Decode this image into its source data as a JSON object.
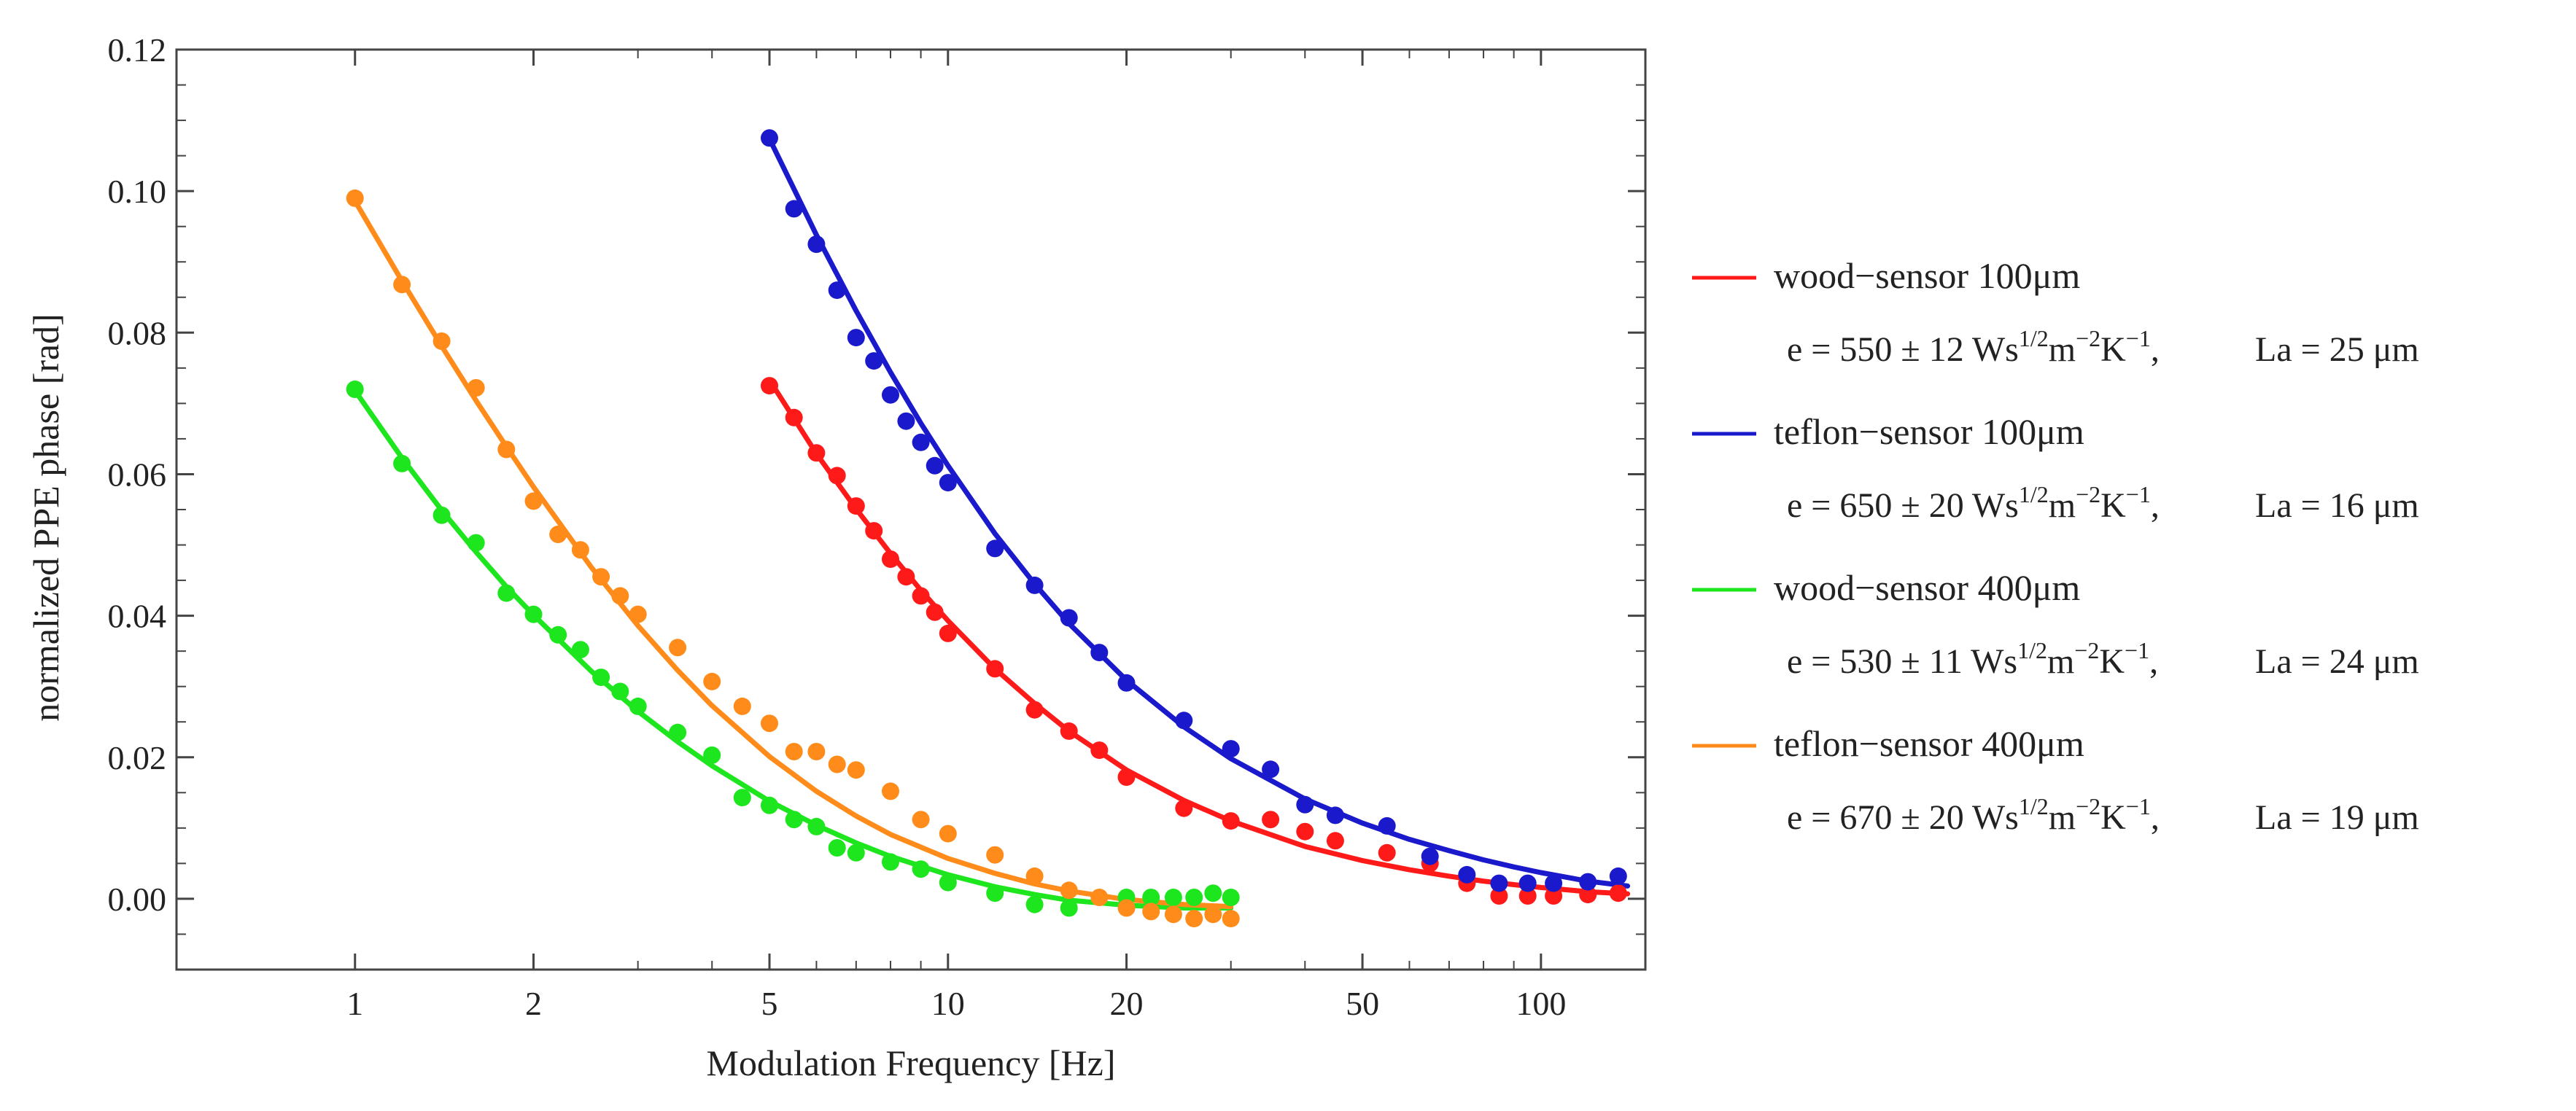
{
  "chart_data": {
    "type": "scatter",
    "x_scale": "log",
    "xlabel": "Modulation Frequency [Hz]",
    "ylabel": "normalized PPE phase  [rad]",
    "xlim": [
      0.5,
      150
    ],
    "ylim": [
      -0.01,
      0.12
    ],
    "x_ticks": [
      {
        "value": 1,
        "label": "1"
      },
      {
        "value": 2,
        "label": "2"
      },
      {
        "value": 5,
        "label": "5"
      },
      {
        "value": 10,
        "label": "10"
      },
      {
        "value": 20,
        "label": "20"
      },
      {
        "value": 50,
        "label": "50"
      },
      {
        "value": 100,
        "label": "100"
      }
    ],
    "x_minor_ticks": [
      3,
      4,
      6,
      7,
      8,
      9,
      30,
      40,
      60,
      70,
      80,
      90
    ],
    "y_ticks": [
      {
        "value": 0.0,
        "label": "0.00"
      },
      {
        "value": 0.02,
        "label": "0.02"
      },
      {
        "value": 0.04,
        "label": "0.04"
      },
      {
        "value": 0.06,
        "label": "0.06"
      },
      {
        "value": 0.08,
        "label": "0.08"
      },
      {
        "value": 0.1,
        "label": "0.10"
      },
      {
        "value": 0.12,
        "label": "0.12"
      }
    ],
    "y_minor_ticks": [
      -0.005,
      0.005,
      0.01,
      0.015,
      0.025,
      0.03,
      0.035,
      0.045,
      0.05,
      0.055,
      0.065,
      0.07,
      0.075,
      0.085,
      0.09,
      0.095,
      0.105,
      0.11,
      0.115
    ],
    "legend_position": "right",
    "series": [
      {
        "name": "wood−sensor 100μm",
        "param_e": "e = 550 ± 12 Ws",
        "param_la": "La = 25 μm",
        "color": "#ff1a1a",
        "points": [
          [
            5,
            0.0725
          ],
          [
            5.5,
            0.068
          ],
          [
            6,
            0.063
          ],
          [
            6.5,
            0.0598
          ],
          [
            7,
            0.0555
          ],
          [
            7.5,
            0.052
          ],
          [
            8,
            0.048
          ],
          [
            8.5,
            0.0455
          ],
          [
            9,
            0.0428
          ],
          [
            9.5,
            0.0405
          ],
          [
            10,
            0.0375
          ],
          [
            12,
            0.0325
          ],
          [
            14,
            0.0267
          ],
          [
            16,
            0.0237
          ],
          [
            18,
            0.021
          ],
          [
            20,
            0.0172
          ],
          [
            25,
            0.0128
          ],
          [
            30,
            0.011
          ],
          [
            35,
            0.0112
          ],
          [
            40,
            0.0095
          ],
          [
            45,
            0.0082
          ],
          [
            55,
            0.0065
          ],
          [
            65,
            0.005
          ],
          [
            75,
            0.0022
          ],
          [
            85,
            0.0004
          ],
          [
            95,
            0.0004
          ],
          [
            105,
            0.0004
          ],
          [
            120,
            0.0006
          ],
          [
            135,
            0.0008
          ]
        ],
        "fit": [
          [
            5,
            0.0733
          ],
          [
            6,
            0.0629
          ],
          [
            7,
            0.0551
          ],
          [
            8,
            0.0488
          ],
          [
            9,
            0.0436
          ],
          [
            10,
            0.0393
          ],
          [
            12,
            0.0325
          ],
          [
            14,
            0.0276
          ],
          [
            16,
            0.0237
          ],
          [
            20,
            0.0182
          ],
          [
            25,
            0.0139
          ],
          [
            30,
            0.011
          ],
          [
            40,
            0.0074
          ],
          [
            50,
            0.0054
          ],
          [
            60,
            0.0041
          ],
          [
            70,
            0.0032
          ],
          [
            80,
            0.0025
          ],
          [
            90,
            0.002
          ],
          [
            100,
            0.0016
          ],
          [
            120,
            0.001
          ],
          [
            140,
            0.0007
          ]
        ]
      },
      {
        "name": "teflon−sensor 100μm",
        "param_e": "e = 650 ± 20 Ws",
        "param_la": "La = 16 μm",
        "color": "#1a1acc",
        "points": [
          [
            5,
            0.1075
          ],
          [
            5.5,
            0.0975
          ],
          [
            6,
            0.0925
          ],
          [
            6.5,
            0.086
          ],
          [
            7,
            0.0793
          ],
          [
            7.5,
            0.076
          ],
          [
            8,
            0.0712
          ],
          [
            8.5,
            0.0675
          ],
          [
            9,
            0.0645
          ],
          [
            9.5,
            0.0612
          ],
          [
            10,
            0.0588
          ],
          [
            12,
            0.0495
          ],
          [
            14,
            0.0443
          ],
          [
            16,
            0.0397
          ],
          [
            18,
            0.0348
          ],
          [
            20,
            0.0305
          ],
          [
            25,
            0.0252
          ],
          [
            30,
            0.0212
          ],
          [
            35,
            0.0183
          ],
          [
            40,
            0.0133
          ],
          [
            45,
            0.0118
          ],
          [
            55,
            0.0103
          ],
          [
            65,
            0.006
          ],
          [
            75,
            0.0034
          ],
          [
            85,
            0.0022
          ],
          [
            95,
            0.0022
          ],
          [
            105,
            0.0022
          ],
          [
            120,
            0.0024
          ],
          [
            135,
            0.0032
          ]
        ],
        "fit": [
          [
            5,
            0.1074
          ],
          [
            6,
            0.0938
          ],
          [
            7,
            0.0831
          ],
          [
            8,
            0.0744
          ],
          [
            9,
            0.0672
          ],
          [
            10,
            0.0612
          ],
          [
            12,
            0.0516
          ],
          [
            14,
            0.0445
          ],
          [
            16,
            0.0389
          ],
          [
            20,
            0.0309
          ],
          [
            25,
            0.0243
          ],
          [
            30,
            0.0198
          ],
          [
            40,
            0.0141
          ],
          [
            50,
            0.0107
          ],
          [
            60,
            0.0084
          ],
          [
            70,
            0.0068
          ],
          [
            80,
            0.0055
          ],
          [
            90,
            0.0045
          ],
          [
            100,
            0.0037
          ],
          [
            120,
            0.0025
          ],
          [
            140,
            0.0018
          ]
        ]
      },
      {
        "name": "wood−sensor 400μm",
        "param_e": "e = 530 ± 11 Ws",
        "param_la": "La = 24 μm",
        "color": "#1ee61e",
        "points": [
          [
            1,
            0.072
          ],
          [
            1.2,
            0.0615
          ],
          [
            1.4,
            0.0542
          ],
          [
            1.6,
            0.0503
          ],
          [
            1.8,
            0.0432
          ],
          [
            2,
            0.0402
          ],
          [
            2.2,
            0.0373
          ],
          [
            2.4,
            0.0352
          ],
          [
            2.6,
            0.0313
          ],
          [
            2.8,
            0.0293
          ],
          [
            3,
            0.0272
          ],
          [
            3.5,
            0.0235
          ],
          [
            4,
            0.0203
          ],
          [
            4.5,
            0.0143
          ],
          [
            5,
            0.0132
          ],
          [
            5.5,
            0.0112
          ],
          [
            6,
            0.0102
          ],
          [
            6.5,
            0.0072
          ],
          [
            7,
            0.0065
          ],
          [
            8,
            0.0052
          ],
          [
            9,
            0.0042
          ],
          [
            10,
            0.0023
          ],
          [
            12,
            0.0008
          ],
          [
            14,
            -0.0008
          ],
          [
            16,
            -0.0013
          ],
          [
            20,
            0.0002
          ],
          [
            22,
            0.0002
          ],
          [
            24,
            0.0002
          ],
          [
            26,
            0.0002
          ],
          [
            28,
            0.0008
          ],
          [
            30,
            0.0002
          ]
        ],
        "fit": [
          [
            1,
            0.0718
          ],
          [
            1.2,
            0.0623
          ],
          [
            1.4,
            0.0549
          ],
          [
            1.6,
            0.049
          ],
          [
            1.8,
            0.0441
          ],
          [
            2,
            0.0401
          ],
          [
            2.5,
            0.0322
          ],
          [
            3,
            0.0265
          ],
          [
            3.5,
            0.0222
          ],
          [
            4,
            0.0188
          ],
          [
            5,
            0.0138
          ],
          [
            6,
            0.0104
          ],
          [
            7,
            0.0079
          ],
          [
            8,
            0.006
          ],
          [
            10,
            0.0034
          ],
          [
            12,
            0.0017
          ],
          [
            14,
            0.0006
          ],
          [
            16,
            -0.0002
          ],
          [
            20,
            -0.0009
          ],
          [
            25,
            -0.0013
          ],
          [
            30,
            -0.0013
          ]
        ]
      },
      {
        "name": "teflon−sensor 400μm",
        "param_e": "e = 670 ± 20 Ws",
        "param_la": "La = 19 μm",
        "color": "#ff8c1a",
        "points": [
          [
            1,
            0.099
          ],
          [
            1.2,
            0.0868
          ],
          [
            1.4,
            0.0788
          ],
          [
            1.6,
            0.0722
          ],
          [
            1.8,
            0.0635
          ],
          [
            2,
            0.0562
          ],
          [
            2.2,
            0.0515
          ],
          [
            2.4,
            0.0493
          ],
          [
            2.6,
            0.0455
          ],
          [
            2.8,
            0.0428
          ],
          [
            3,
            0.0402
          ],
          [
            3.5,
            0.0355
          ],
          [
            4,
            0.0307
          ],
          [
            4.5,
            0.0272
          ],
          [
            5,
            0.0248
          ],
          [
            5.5,
            0.0208
          ],
          [
            6,
            0.0208
          ],
          [
            6.5,
            0.019
          ],
          [
            7,
            0.0182
          ],
          [
            8,
            0.0152
          ],
          [
            9,
            0.0112
          ],
          [
            10,
            0.0092
          ],
          [
            12,
            0.0062
          ],
          [
            14,
            0.0032
          ],
          [
            16,
            0.0012
          ],
          [
            18,
            0.0002
          ],
          [
            20,
            -0.0013
          ],
          [
            22,
            -0.0018
          ],
          [
            24,
            -0.0022
          ],
          [
            26,
            -0.0028
          ],
          [
            28,
            -0.0022
          ],
          [
            30,
            -0.0028
          ]
        ],
        "fit": [
          [
            1,
            0.0986
          ],
          [
            1.2,
            0.0873
          ],
          [
            1.4,
            0.0781
          ],
          [
            1.6,
            0.0704
          ],
          [
            1.8,
            0.0639
          ],
          [
            2,
            0.0582
          ],
          [
            2.5,
            0.0469
          ],
          [
            3,
            0.0386
          ],
          [
            3.5,
            0.0323
          ],
          [
            4,
            0.0273
          ],
          [
            5,
            0.0201
          ],
          [
            6,
            0.0152
          ],
          [
            7,
            0.0117
          ],
          [
            8,
            0.0091
          ],
          [
            10,
            0.0057
          ],
          [
            12,
            0.0036
          ],
          [
            14,
            0.0021
          ],
          [
            16,
            0.0011
          ],
          [
            20,
            -0.0001
          ],
          [
            25,
            -0.0008
          ],
          [
            30,
            -0.0011
          ]
        ]
      }
    ]
  }
}
